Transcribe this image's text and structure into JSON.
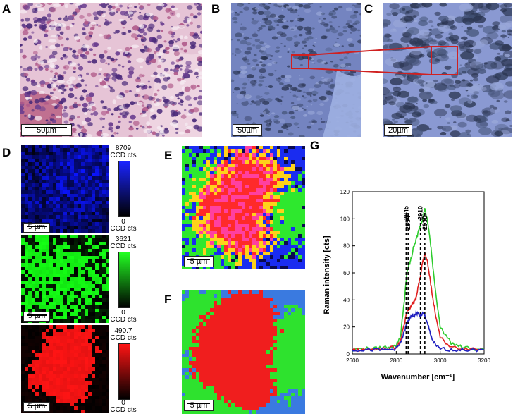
{
  "panels": {
    "A": {
      "label": "A",
      "scale": "50µm"
    },
    "B": {
      "label": "B",
      "scale": "50µm"
    },
    "C": {
      "label": "C",
      "scale": "20µm"
    },
    "D": {
      "label": "D",
      "maps": [
        {
          "scale": "5 µm",
          "max": "8709",
          "max_unit": "CCD cts",
          "min": "0",
          "min_unit": "CCD cts",
          "color": "#1a24ff"
        },
        {
          "scale": "5 µm",
          "max": "3621",
          "max_unit": "CCD cts",
          "min": "0",
          "min_unit": "CCD cts",
          "color": "#22ff22"
        },
        {
          "scale": "5 µm",
          "max": "490.7",
          "max_unit": "CCD cts",
          "min": "0",
          "min_unit": "CCD cts",
          "color": "#ff1414"
        }
      ]
    },
    "E": {
      "label": "E",
      "scale": "5 µm"
    },
    "F": {
      "label": "F",
      "scale": "5 µm"
    },
    "G": {
      "label": "G"
    }
  },
  "chart_data": {
    "type": "line",
    "xlabel": "Wavenumber [cm⁻¹]",
    "ylabel": "Raman intensity [cts]",
    "xlim": [
      2600,
      3200
    ],
    "ylim": [
      0,
      120
    ],
    "xticks": [
      "2600",
      "2800",
      "3000",
      "3200"
    ],
    "yticks": [
      "0",
      "20",
      "40",
      "60",
      "80",
      "100",
      "120"
    ],
    "markers": [
      "2845",
      "2854",
      "2910",
      "2930"
    ],
    "marker_values": [
      2845,
      2854,
      2910,
      2930
    ],
    "x": [
      2600,
      2650,
      2700,
      2750,
      2800,
      2820,
      2840,
      2850,
      2860,
      2870,
      2880,
      2890,
      2900,
      2910,
      2920,
      2930,
      2940,
      2950,
      2960,
      2980,
      3000,
      3050,
      3100,
      3150,
      3200
    ],
    "series": [
      {
        "color": "#2ecc2e",
        "values": [
          3,
          4,
          4,
          5,
          6,
          14,
          45,
          62,
          66,
          72,
          80,
          84,
          90,
          95,
          100,
          108,
          100,
          90,
          75,
          45,
          20,
          8,
          5,
          4,
          3
        ]
      },
      {
        "color": "#e02020",
        "values": [
          3,
          3,
          4,
          4,
          5,
          10,
          24,
          32,
          34,
          36,
          38,
          42,
          50,
          58,
          68,
          74,
          70,
          60,
          48,
          28,
          12,
          5,
          4,
          4,
          3
        ]
      },
      {
        "color": "#2020c0",
        "values": [
          3,
          3,
          3,
          3,
          4,
          8,
          18,
          24,
          26,
          28,
          28,
          30,
          30,
          28,
          30,
          28,
          24,
          18,
          12,
          6,
          4,
          3,
          3,
          3,
          3
        ]
      }
    ],
    "grid": false
  },
  "colors": {
    "blue": "#1a24ff",
    "green": "#22ff22",
    "red": "#ff1414",
    "zoom_box": "#d02020"
  }
}
